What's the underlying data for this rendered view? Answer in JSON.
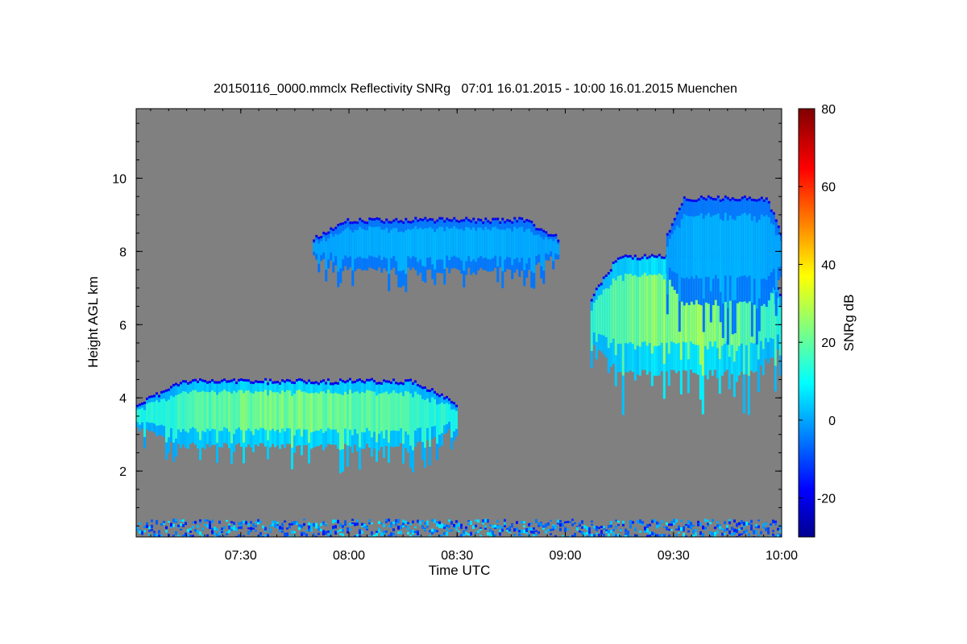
{
  "chart_data": {
    "type": "heatmap",
    "title": "20150116_0000.mmclx Reflectivity SNRg   07:01 16.01.2015 - 10:00 16.01.2015 Muenchen",
    "xlabel": "Time UTC",
    "ylabel": "Height AGL km",
    "xlim": [
      "07:01",
      "10:00"
    ],
    "ylim": [
      0.2,
      11.9
    ],
    "x_ticks": [
      "07:30",
      "08:00",
      "08:30",
      "09:00",
      "09:30",
      "10:00"
    ],
    "y_ticks": [
      "2",
      "4",
      "6",
      "8",
      "10"
    ],
    "colorbar": {
      "label": "SNRg dB",
      "range": [
        -30,
        80
      ],
      "ticks": [
        "-20",
        "0",
        "20",
        "40",
        "60",
        "80"
      ],
      "colormap": "jet"
    },
    "background_color": "#808080",
    "features": [
      {
        "kind": "cloud",
        "start": "07:01",
        "end": "08:30",
        "base_km": 2.6,
        "top_km": 4.5,
        "peak_snr_db": 30
      },
      {
        "kind": "cloud",
        "start": "07:50",
        "end": "08:58",
        "base_km": 7.4,
        "top_km": 8.9,
        "peak_snr_db": 5
      },
      {
        "kind": "cloud",
        "start": "09:07",
        "end": "10:00",
        "base_km": 4.6,
        "top_km": 7.9,
        "peak_snr_db": 35
      },
      {
        "kind": "cloud",
        "start": "09:28",
        "end": "10:00",
        "base_km": 6.5,
        "top_km": 9.5,
        "peak_snr_db": 5
      },
      {
        "kind": "clutter",
        "start": "07:01",
        "end": "10:00",
        "base_km": 0.2,
        "top_km": 0.7,
        "peak_snr_db": 0
      }
    ]
  }
}
